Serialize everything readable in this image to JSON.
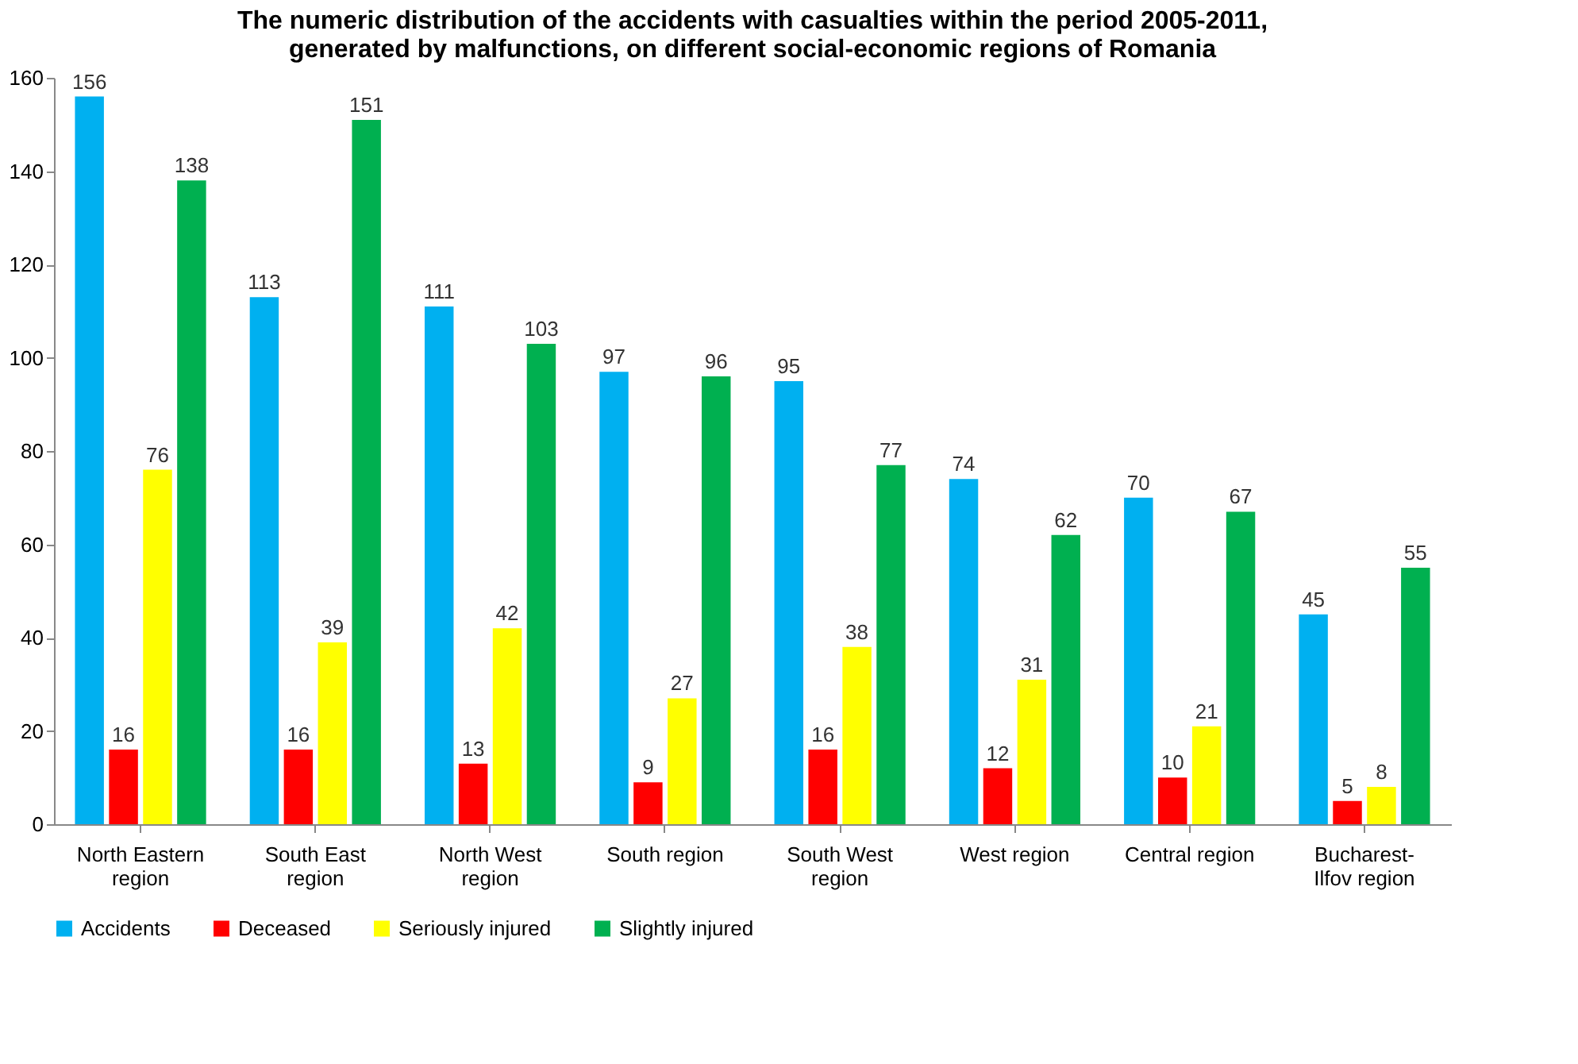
{
  "chart_data": {
    "type": "bar",
    "title": "The numeric distribution of the accidents with casualties within the period 2005-2011, generated by malfunctions, on different social-economic regions of Romania",
    "categories": [
      "North Eastern region",
      "South East region",
      "North West region",
      "South region",
      "South West region",
      "West region",
      "Central region",
      "Bucharest-Ilfov region"
    ],
    "series": [
      {
        "name": "Accidents",
        "color": "#00b0f0",
        "values": [
          156,
          113,
          111,
          97,
          95,
          74,
          70,
          45
        ]
      },
      {
        "name": "Deceased",
        "color": "#ff0000",
        "values": [
          16,
          16,
          13,
          9,
          16,
          12,
          10,
          5
        ]
      },
      {
        "name": "Seriously injured",
        "color": "#ffff00",
        "values": [
          76,
          39,
          42,
          27,
          38,
          31,
          21,
          8
        ]
      },
      {
        "name": "Slightly injured",
        "color": "#00b050",
        "values": [
          138,
          151,
          103,
          96,
          77,
          62,
          67,
          55
        ]
      }
    ],
    "ylim": [
      0,
      160
    ],
    "yticks": [
      0,
      20,
      40,
      60,
      80,
      100,
      120,
      140,
      160
    ],
    "grid": false,
    "legend": "bottom",
    "data_labels": true
  }
}
